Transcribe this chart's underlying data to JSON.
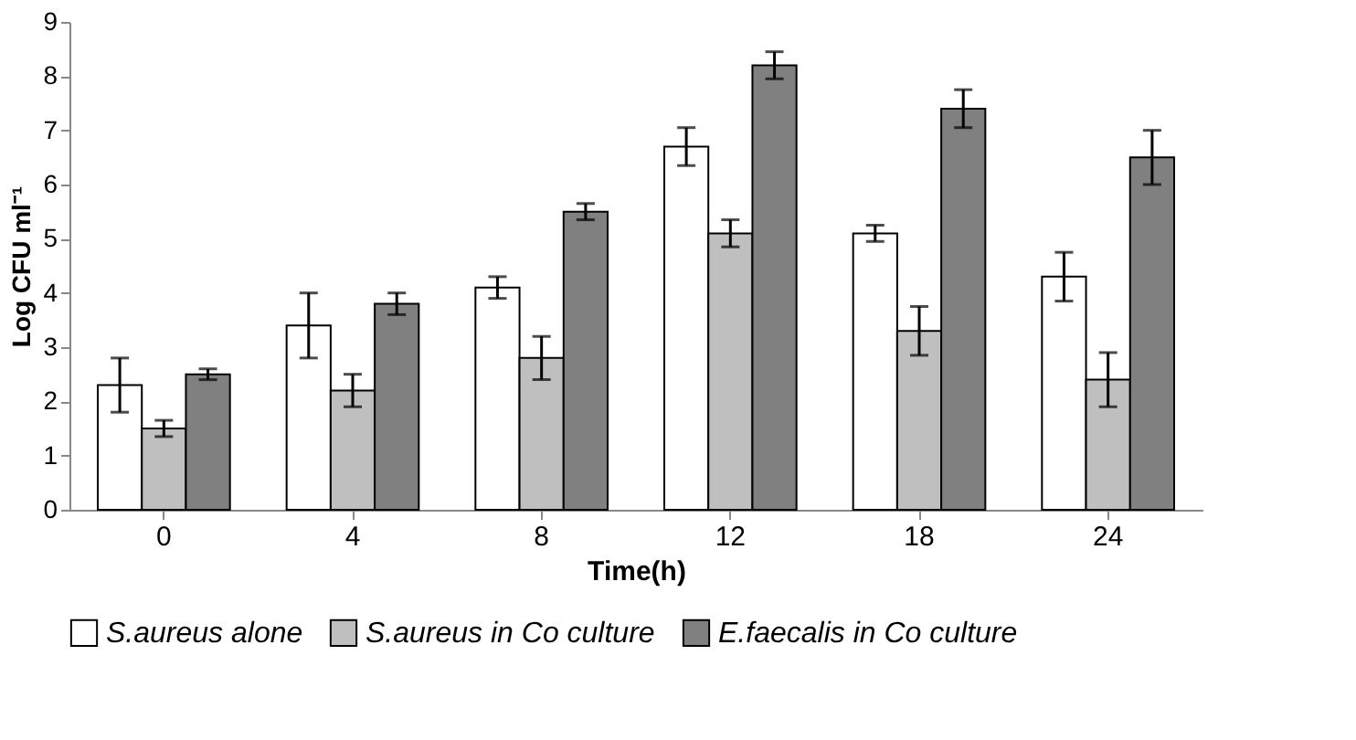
{
  "chart_data": {
    "type": "bar",
    "xlabel": "Time(h)",
    "ylabel": "Log CFU ml⁻¹",
    "categories": [
      "0",
      "4",
      "8",
      "12",
      "18",
      "24"
    ],
    "ylim": [
      0,
      9
    ],
    "yticks": [
      0,
      1,
      2,
      3,
      4,
      5,
      6,
      7,
      8,
      9
    ],
    "grid": false,
    "legend": "bottom",
    "series": [
      {
        "name": "S.aureus alone",
        "color": "#ffffff",
        "values": [
          2.3,
          3.4,
          4.1,
          6.7,
          5.1,
          4.3
        ],
        "errors": [
          0.5,
          0.6,
          0.2,
          0.35,
          0.15,
          0.45
        ]
      },
      {
        "name": "S.aureus in Co culture",
        "color": "#bfbfbf",
        "values": [
          1.5,
          2.2,
          2.8,
          5.1,
          3.3,
          2.4
        ],
        "errors": [
          0.15,
          0.3,
          0.4,
          0.25,
          0.45,
          0.5
        ]
      },
      {
        "name": "E.faecalis in Co culture",
        "color": "#808080",
        "values": [
          2.5,
          3.8,
          5.5,
          8.2,
          7.4,
          6.5
        ],
        "errors": [
          0.1,
          0.2,
          0.15,
          0.25,
          0.35,
          0.5
        ]
      }
    ]
  }
}
